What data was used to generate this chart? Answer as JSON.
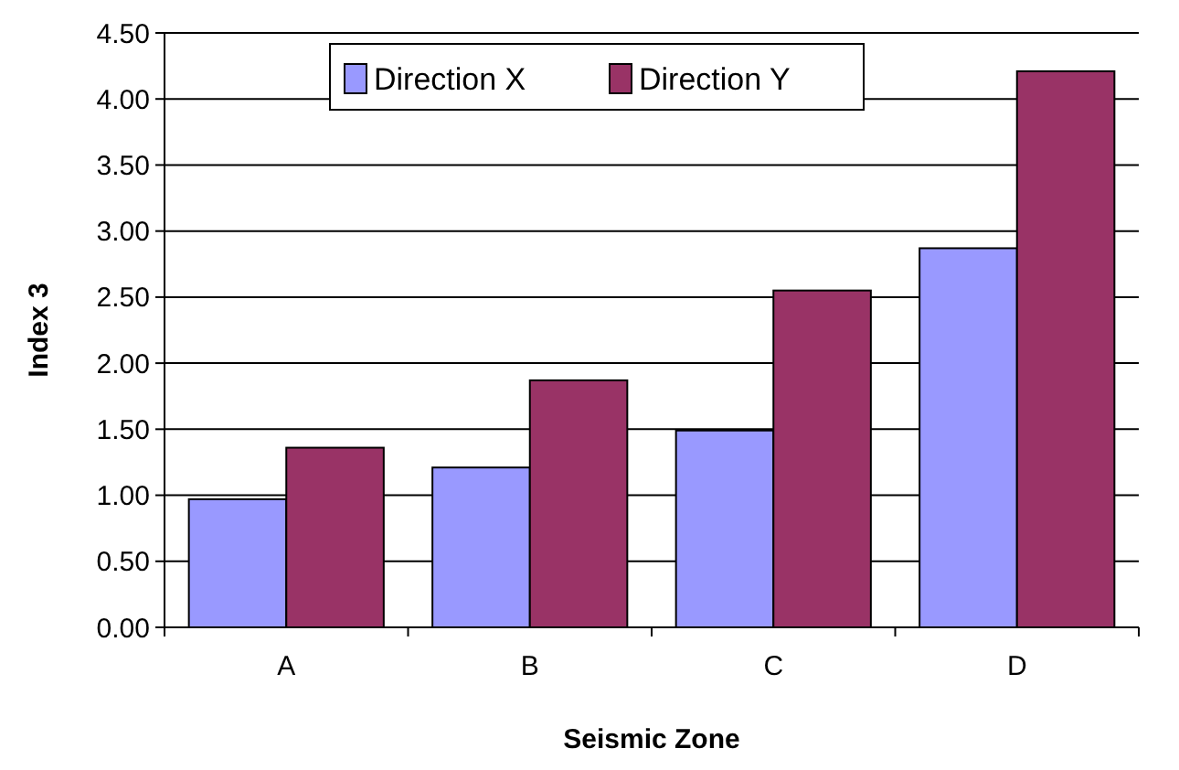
{
  "chart_data": {
    "type": "bar",
    "xlabel": "Seismic Zone",
    "ylabel": "Index 3",
    "categories": [
      "A",
      "B",
      "C",
      "D"
    ],
    "series": [
      {
        "name": "Direction X",
        "color": "#9999ff",
        "values": [
          0.97,
          1.21,
          1.49,
          2.87
        ]
      },
      {
        "name": "Direction Y",
        "color": "#993366",
        "values": [
          1.36,
          1.87,
          2.55,
          4.21
        ]
      }
    ],
    "ylim": [
      0,
      4.5
    ],
    "yticks": [
      {
        "value": 0,
        "label": "0.00"
      },
      {
        "value": 0.5,
        "label": "0.50"
      },
      {
        "value": 1,
        "label": "1.00"
      },
      {
        "value": 1.5,
        "label": "1.50"
      },
      {
        "value": 2,
        "label": "2.00"
      },
      {
        "value": 2.5,
        "label": "2.50"
      },
      {
        "value": 3,
        "label": "3.00"
      },
      {
        "value": 3.5,
        "label": "3.50"
      },
      {
        "value": 4,
        "label": "4.00"
      },
      {
        "value": 4.5,
        "label": "4.50"
      }
    ],
    "grid": "y",
    "legend": "top"
  }
}
